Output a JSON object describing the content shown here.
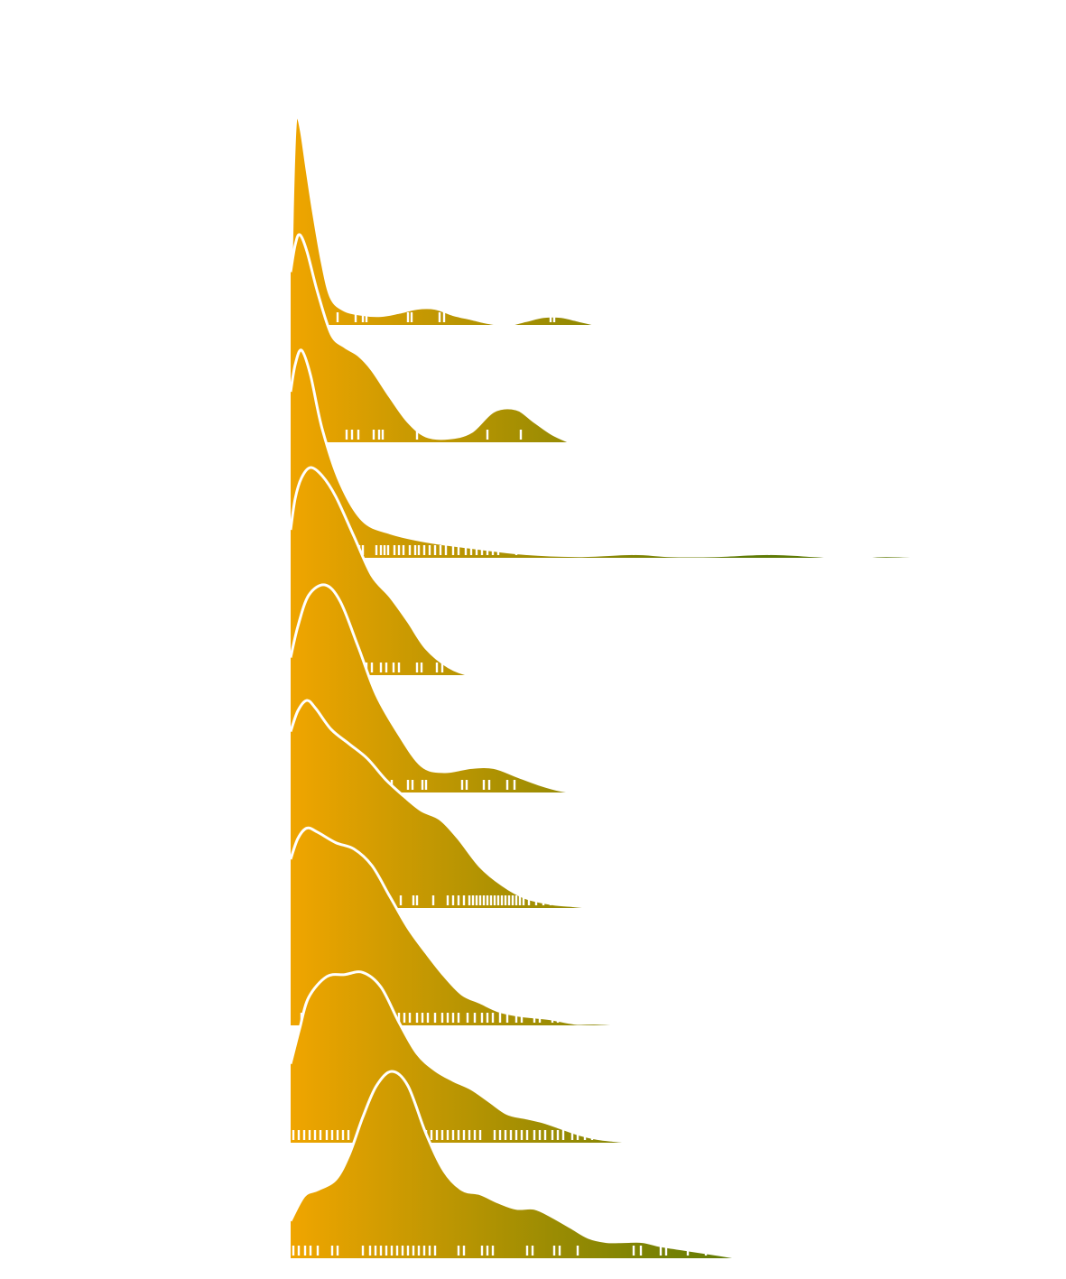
{
  "chart_data": {
    "type": "ridgeline",
    "title": "",
    "xlabel": "",
    "ylabel": "",
    "xlim": [
      0,
      720
    ],
    "ylim_per_ridge": [
      0,
      1
    ],
    "grid": false,
    "legend": "none",
    "fill_gradient": [
      "#F0A500",
      "#5E7A05"
    ],
    "ridge_outline": "#ffffff",
    "series": [
      {
        "curve": [
          [
            0,
            0.05
          ],
          [
            2,
            0.55
          ],
          [
            5,
            0.95
          ],
          [
            8,
            1.0
          ],
          [
            12,
            0.93
          ],
          [
            18,
            0.75
          ],
          [
            25,
            0.55
          ],
          [
            35,
            0.3
          ],
          [
            45,
            0.13
          ],
          [
            60,
            0.07
          ],
          [
            80,
            0.05
          ],
          [
            100,
            0.045
          ],
          [
            120,
            0.06
          ],
          [
            140,
            0.08
          ],
          [
            160,
            0.08
          ],
          [
            180,
            0.05
          ],
          [
            200,
            0.03
          ],
          [
            220,
            0.01
          ],
          [
            240,
            0.0
          ],
          [
            260,
            0.02
          ],
          [
            280,
            0.04
          ],
          [
            300,
            0.04
          ],
          [
            320,
            0.02
          ],
          [
            340,
            0.0
          ]
        ],
        "rug": [
          5,
          28,
          52,
          72,
          80,
          84,
          130,
          134,
          165,
          170,
          288,
          292
        ]
      },
      {
        "curve": [
          [
            0,
            0.82
          ],
          [
            5,
            0.95
          ],
          [
            10,
            1.0
          ],
          [
            18,
            0.92
          ],
          [
            30,
            0.72
          ],
          [
            45,
            0.52
          ],
          [
            60,
            0.46
          ],
          [
            75,
            0.42
          ],
          [
            90,
            0.35
          ],
          [
            110,
            0.22
          ],
          [
            130,
            0.1
          ],
          [
            150,
            0.03
          ],
          [
            175,
            0.02
          ],
          [
            200,
            0.05
          ],
          [
            225,
            0.15
          ],
          [
            250,
            0.16
          ],
          [
            270,
            0.1
          ],
          [
            290,
            0.04
          ],
          [
            310,
            0.0
          ]
        ],
        "rug": [
          5,
          25,
          62,
          68,
          75,
          92,
          98,
          102,
          140,
          218,
          255
        ]
      },
      {
        "curve": [
          [
            0,
            0.8
          ],
          [
            5,
            0.93
          ],
          [
            12,
            1.0
          ],
          [
            22,
            0.88
          ],
          [
            35,
            0.62
          ],
          [
            55,
            0.36
          ],
          [
            80,
            0.18
          ],
          [
            110,
            0.12
          ],
          [
            150,
            0.08
          ],
          [
            200,
            0.05
          ],
          [
            260,
            0.02
          ],
          [
            320,
            0.01
          ],
          [
            380,
            0.02
          ],
          [
            420,
            0.01
          ],
          [
            470,
            0.01
          ],
          [
            530,
            0.02
          ],
          [
            580,
            0.01
          ],
          [
            620,
            0.0
          ],
          [
            660,
            0.01
          ],
          [
            720,
            0.0
          ]
        ],
        "rug": [
          5,
          15,
          25,
          32,
          40,
          45,
          52,
          60,
          64,
          72,
          76,
          80,
          95,
          100,
          104,
          108,
          115,
          120,
          125,
          132,
          138,
          142,
          148,
          154,
          160,
          166,
          172,
          180,
          186,
          194,
          200,
          206,
          212,
          218,
          224,
          230,
          250,
          262,
          276,
          282,
          296,
          302,
          358,
          366,
          372,
          380,
          404,
          410,
          418,
          476,
          484,
          522,
          530,
          556,
          580,
          604,
          660,
          674,
          688,
          700
        ]
      },
      {
        "curve": [
          [
            0,
            0.7
          ],
          [
            5,
            0.85
          ],
          [
            12,
            0.95
          ],
          [
            22,
            1.0
          ],
          [
            35,
            0.96
          ],
          [
            50,
            0.86
          ],
          [
            70,
            0.67
          ],
          [
            90,
            0.48
          ],
          [
            110,
            0.38
          ],
          [
            130,
            0.26
          ],
          [
            150,
            0.13
          ],
          [
            175,
            0.04
          ],
          [
            200,
            0.0
          ],
          [
            225,
            0.0
          ]
        ],
        "rug": [
          5,
          15,
          70,
          76,
          84,
          90,
          100,
          106,
          114,
          120,
          140,
          145,
          162,
          168,
          192,
          212
        ]
      },
      {
        "curve": [
          [
            0,
            0.65
          ],
          [
            8,
            0.8
          ],
          [
            20,
            0.95
          ],
          [
            38,
            1.0
          ],
          [
            55,
            0.92
          ],
          [
            75,
            0.7
          ],
          [
            95,
            0.47
          ],
          [
            120,
            0.28
          ],
          [
            145,
            0.13
          ],
          [
            170,
            0.1
          ],
          [
            200,
            0.12
          ],
          [
            225,
            0.12
          ],
          [
            250,
            0.08
          ],
          [
            275,
            0.04
          ],
          [
            300,
            0.01
          ],
          [
            318,
            0.0
          ]
        ],
        "rug": [
          3,
          8,
          13,
          18,
          22,
          26,
          30,
          35,
          40,
          44,
          48,
          52,
          56,
          62,
          66,
          70,
          74,
          78,
          84,
          88,
          106,
          112,
          130,
          135,
          146,
          150,
          190,
          195,
          214,
          220,
          240,
          248
        ]
      },
      {
        "curve": [
          [
            0,
            0.85
          ],
          [
            8,
            0.95
          ],
          [
            18,
            1.0
          ],
          [
            28,
            0.96
          ],
          [
            45,
            0.86
          ],
          [
            65,
            0.79
          ],
          [
            85,
            0.72
          ],
          [
            105,
            0.62
          ],
          [
            125,
            0.54
          ],
          [
            145,
            0.47
          ],
          [
            165,
            0.43
          ],
          [
            185,
            0.34
          ],
          [
            210,
            0.2
          ],
          [
            235,
            0.11
          ],
          [
            260,
            0.05
          ],
          [
            290,
            0.02
          ],
          [
            315,
            0.01
          ],
          [
            338,
            0.0
          ]
        ],
        "rug": [
          30,
          38,
          52,
          58,
          64,
          74,
          98,
          104,
          122,
          136,
          140,
          158,
          174,
          180,
          186,
          192,
          198,
          202,
          206,
          210,
          214,
          218,
          222,
          226,
          230,
          234,
          238,
          242,
          246,
          250,
          254,
          258,
          264,
          272,
          280,
          288,
          296,
          304,
          312
        ]
      },
      {
        "curve": [
          [
            0,
            0.8
          ],
          [
            8,
            0.9
          ],
          [
            18,
            0.95
          ],
          [
            30,
            0.93
          ],
          [
            50,
            0.88
          ],
          [
            70,
            0.85
          ],
          [
            90,
            0.77
          ],
          [
            110,
            0.62
          ],
          [
            130,
            0.47
          ],
          [
            150,
            0.35
          ],
          [
            170,
            0.24
          ],
          [
            190,
            0.15
          ],
          [
            210,
            0.11
          ],
          [
            230,
            0.07
          ],
          [
            250,
            0.05
          ],
          [
            270,
            0.04
          ],
          [
            290,
            0.03
          ],
          [
            315,
            0.01
          ],
          [
            340,
            0.01
          ],
          [
            378,
            0.0
          ]
        ],
        "rug": [
          12,
          20,
          30,
          38,
          44,
          50,
          56,
          62,
          68,
          74,
          80,
          96,
          102,
          108,
          114,
          120,
          126,
          132,
          140,
          146,
          152,
          160,
          168,
          174,
          180,
          186,
          196,
          204,
          212,
          218,
          224,
          232,
          240,
          250,
          256,
          270,
          276,
          290,
          296,
          312,
          322,
          330,
          350,
          356,
          362,
          370
        ]
      },
      {
        "curve": [
          [
            0,
            0.38
          ],
          [
            10,
            0.55
          ],
          [
            20,
            0.7
          ],
          [
            40,
            0.8
          ],
          [
            60,
            0.81
          ],
          [
            80,
            0.82
          ],
          [
            100,
            0.75
          ],
          [
            120,
            0.58
          ],
          [
            140,
            0.43
          ],
          [
            160,
            0.35
          ],
          [
            180,
            0.3
          ],
          [
            200,
            0.26
          ],
          [
            220,
            0.2
          ],
          [
            240,
            0.14
          ],
          [
            260,
            0.12
          ],
          [
            280,
            0.1
          ],
          [
            300,
            0.07
          ],
          [
            320,
            0.04
          ],
          [
            340,
            0.02
          ],
          [
            360,
            0.01
          ],
          [
            385,
            0.0
          ]
        ],
        "rug": [
          3,
          9,
          15,
          21,
          27,
          33,
          40,
          46,
          52,
          58,
          64,
          80,
          100,
          108,
          114,
          120,
          126,
          132,
          138,
          144,
          150,
          156,
          162,
          168,
          174,
          180,
          186,
          192,
          198,
          204,
          210,
          226,
          232,
          238,
          244,
          250,
          256,
          262,
          270,
          276,
          282,
          290,
          296,
          302,
          312,
          318,
          326,
          334,
          342,
          348,
          354,
          360,
          366,
          372
        ]
      },
      {
        "curve": [
          [
            0,
            0.18
          ],
          [
            15,
            0.3
          ],
          [
            30,
            0.33
          ],
          [
            50,
            0.38
          ],
          [
            65,
            0.5
          ],
          [
            80,
            0.68
          ],
          [
            95,
            0.83
          ],
          [
            112,
            0.9
          ],
          [
            130,
            0.83
          ],
          [
            150,
            0.6
          ],
          [
            170,
            0.42
          ],
          [
            190,
            0.33
          ],
          [
            210,
            0.31
          ],
          [
            230,
            0.27
          ],
          [
            250,
            0.24
          ],
          [
            270,
            0.24
          ],
          [
            290,
            0.2
          ],
          [
            310,
            0.15
          ],
          [
            330,
            0.1
          ],
          [
            350,
            0.08
          ],
          [
            370,
            0.08
          ],
          [
            390,
            0.08
          ],
          [
            410,
            0.06
          ],
          [
            440,
            0.04
          ],
          [
            470,
            0.02
          ],
          [
            498,
            0.0
          ]
        ],
        "rug": [
          3,
          9,
          16,
          22,
          30,
          46,
          52,
          80,
          88,
          94,
          100,
          106,
          112,
          118,
          124,
          130,
          136,
          142,
          148,
          154,
          160,
          186,
          192,
          212,
          218,
          224,
          262,
          268,
          292,
          298,
          318,
          380,
          388,
          410,
          416,
          440,
          460
        ]
      }
    ]
  }
}
